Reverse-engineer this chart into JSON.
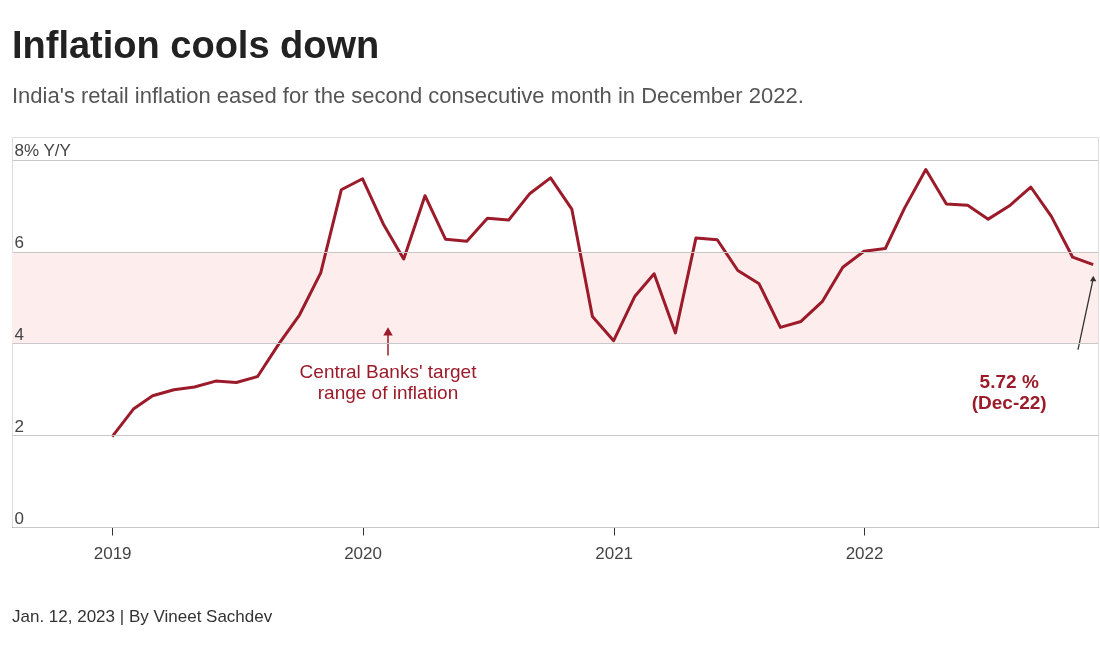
{
  "chart_data": {
    "type": "line",
    "title": "Inflation cools down",
    "subtitle": "India's retail inflation eased for the second consecutive month in December 2022.",
    "x": [
      "2019-01",
      "2019-02",
      "2019-03",
      "2019-04",
      "2019-05",
      "2019-06",
      "2019-07",
      "2019-08",
      "2019-09",
      "2019-10",
      "2019-11",
      "2019-12",
      "2020-01",
      "2020-02",
      "2020-03",
      "2020-04",
      "2020-05",
      "2020-06",
      "2020-07",
      "2020-08",
      "2020-09",
      "2020-10",
      "2020-11",
      "2020-12",
      "2021-01",
      "2021-02",
      "2021-03",
      "2021-04",
      "2021-05",
      "2021-06",
      "2021-07",
      "2021-08",
      "2021-09",
      "2021-10",
      "2021-11",
      "2021-12",
      "2022-01",
      "2022-02",
      "2022-03",
      "2022-04",
      "2022-05",
      "2022-06",
      "2022-07",
      "2022-08",
      "2022-09",
      "2022-10",
      "2022-11",
      "2022-12"
    ],
    "series": [
      {
        "color": "#9b1b2a",
        "values": [
          1.97,
          2.57,
          2.86,
          2.99,
          3.05,
          3.18,
          3.15,
          3.28,
          3.99,
          4.62,
          5.54,
          7.35,
          7.59,
          6.58,
          5.84,
          7.22,
          6.27,
          6.23,
          6.73,
          6.69,
          7.27,
          7.61,
          6.93,
          4.59,
          4.06,
          5.03,
          5.52,
          4.23,
          6.3,
          6.26,
          5.59,
          5.3,
          4.35,
          4.48,
          4.91,
          5.66,
          6.01,
          6.07,
          6.95,
          7.79,
          7.04,
          7.01,
          6.71,
          7.0,
          7.41,
          6.77,
          5.88,
          5.72
        ]
      }
    ],
    "xlim": [
      "2018-08-08",
      "2022-12-08"
    ],
    "xticks": [
      "2019",
      "2020",
      "2021",
      "2022"
    ],
    "ylim": [
      0,
      8.5
    ],
    "yticks": [
      0,
      2,
      4,
      6,
      {
        "value": 8,
        "label": "8% Y/Y"
      }
    ],
    "bands": [
      {
        "axis": "y",
        "from": 4,
        "to": 6,
        "label": "Central Banks' target\nrange of inflation",
        "color": "#fdeeed"
      }
    ],
    "annotations": [
      "5.72 %\n(Dec-22)",
      "Jan. 12, 2023 | By Vineet Sachdev"
    ],
    "grid": "y",
    "marker": "none",
    "line_style": "solid"
  }
}
